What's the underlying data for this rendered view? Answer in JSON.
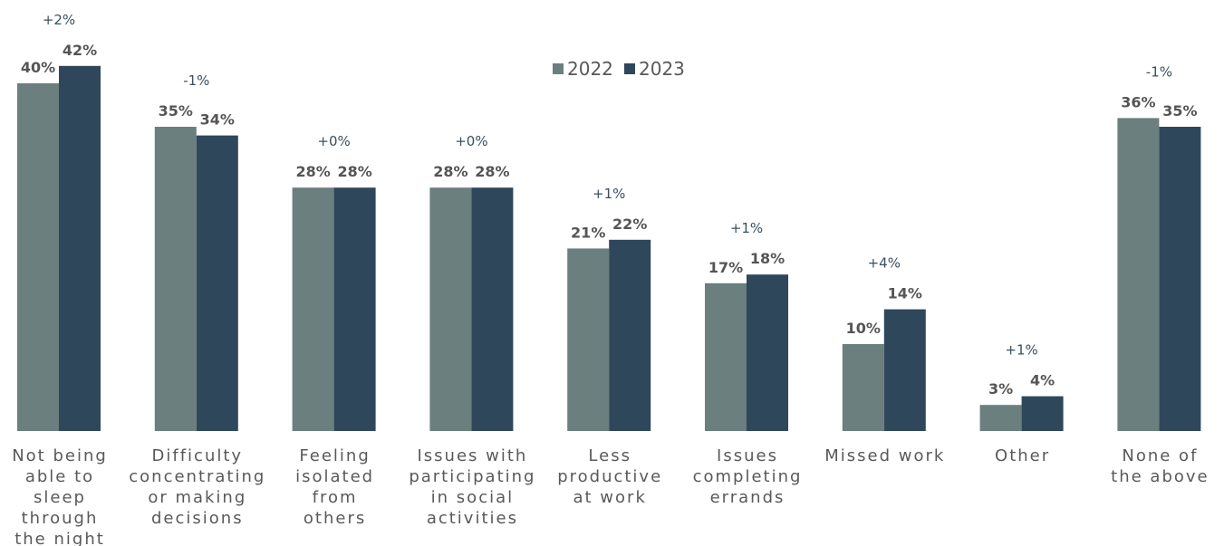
{
  "chart_data": {
    "type": "bar",
    "categories": [
      "Not being able to sleep through the night",
      "Difficulty concentrating or making decisions",
      "Feeling isolated from others",
      "Issues with participating in social activities",
      "Less productive at work",
      "Issues completing errands",
      "Missed work",
      "Other",
      "None of the above"
    ],
    "category_lines": [
      [
        "Not being",
        "able to",
        "sleep",
        "through",
        "the night"
      ],
      [
        "Difficulty",
        "concentrating",
        "or making",
        "decisions"
      ],
      [
        "Feeling",
        "isolated",
        "from",
        "others"
      ],
      [
        "Issues with",
        "participating",
        "in social",
        "activities"
      ],
      [
        "Less",
        "productive",
        "at work"
      ],
      [
        "Issues",
        "completing",
        "errands"
      ],
      [
        "Missed work"
      ],
      [
        "Other"
      ],
      [
        "None of",
        "the above"
      ]
    ],
    "series": [
      {
        "name": "2022",
        "color": "#6a7f7e",
        "values": [
          40,
          35,
          28,
          28,
          21,
          17,
          10,
          3,
          36
        ],
        "labels": [
          "40%",
          "35%",
          "28%",
          "28%",
          "21%",
          "17%",
          "10%",
          "3%",
          "36%"
        ]
      },
      {
        "name": "2023",
        "color": "#2e475b",
        "values": [
          42,
          34,
          28,
          28,
          22,
          18,
          14,
          4,
          35
        ],
        "labels": [
          "42%",
          "34%",
          "28%",
          "28%",
          "22%",
          "18%",
          "14%",
          "4%",
          "35%"
        ]
      }
    ],
    "changes": [
      "+2%",
      "-1%",
      "+0%",
      "+0%",
      "+1%",
      "+1%",
      "+4%",
      "+1%",
      "-1%"
    ],
    "ylim": [
      0,
      42
    ],
    "grid": false,
    "legend": "top-center",
    "title": "",
    "xlabel": "",
    "ylabel": ""
  }
}
